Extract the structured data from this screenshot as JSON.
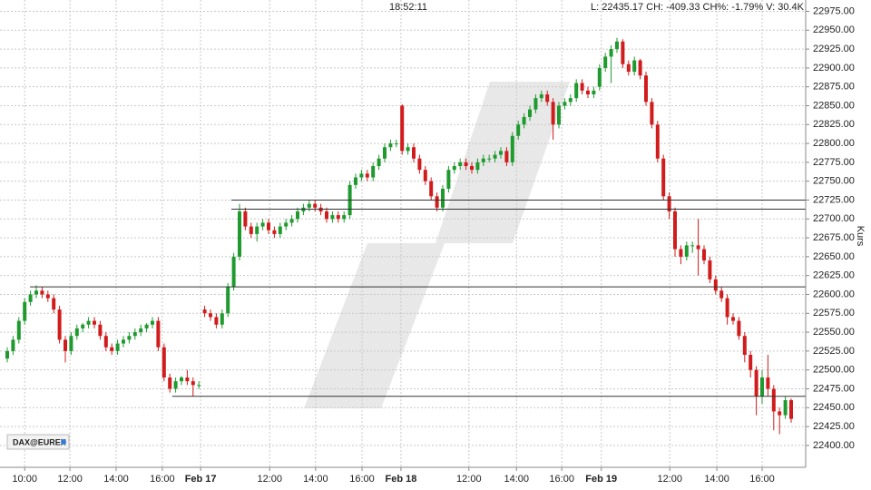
{
  "chart_data": {
    "type": "candlestick",
    "header_time": "18:52:11",
    "header_quote": "L: 22435.17 CH: -409.33 CH%: -1.79% V: 30.4K",
    "badge": "DAX@EUREX",
    "y_label": "Kurs",
    "up_color": "#1f9a2f",
    "down_color": "#d01c1c",
    "grid": true,
    "xlim": [
      -1.25,
      137.5
    ],
    "ylim": [
      22371,
      22990
    ],
    "xticks": [
      {
        "value": 3,
        "label": "10:00"
      },
      {
        "value": 10.8,
        "label": "12:00"
      },
      {
        "value": 18.75,
        "label": "14:00"
      },
      {
        "value": 26.7,
        "label": "16:00"
      },
      {
        "value": 33.3,
        "label": "Feb 17"
      },
      {
        "value": 45.2,
        "label": "12:00"
      },
      {
        "value": 53.1,
        "label": "14:00"
      },
      {
        "value": 61.1,
        "label": "16:00"
      },
      {
        "value": 67.8,
        "label": "Feb 18"
      },
      {
        "value": 79.5,
        "label": "12:00"
      },
      {
        "value": 87.7,
        "label": "14:00"
      },
      {
        "value": 95.5,
        "label": "16:00"
      },
      {
        "value": 102.3,
        "label": "Feb 19"
      },
      {
        "value": 114.1,
        "label": "12:00"
      },
      {
        "value": 122.2,
        "label": "14:00"
      },
      {
        "value": 130,
        "label": "16:00"
      }
    ],
    "yticks": [
      {
        "value": 22400,
        "label": "22400.00"
      },
      {
        "value": 22425,
        "label": "22425.00"
      },
      {
        "value": 22450,
        "label": "22450.00"
      },
      {
        "value": 22475,
        "label": "22475.00"
      },
      {
        "value": 22500,
        "label": "22500.00"
      },
      {
        "value": 22525,
        "label": "22525.00"
      },
      {
        "value": 22550,
        "label": "22550.00"
      },
      {
        "value": 22575,
        "label": "22575.00"
      },
      {
        "value": 22600,
        "label": "22600.00"
      },
      {
        "value": 22625,
        "label": "22625.00"
      },
      {
        "value": 22650,
        "label": "22650.00"
      },
      {
        "value": 22675,
        "label": "22675.00"
      },
      {
        "value": 22700,
        "label": "22700.00"
      },
      {
        "value": 22725,
        "label": "22725.00"
      },
      {
        "value": 22750,
        "label": "22750.00"
      },
      {
        "value": 22775,
        "label": "22775.00"
      },
      {
        "value": 22800,
        "label": "22800.00"
      },
      {
        "value": 22825,
        "label": "22825.00"
      },
      {
        "value": 22850,
        "label": "22850.00"
      },
      {
        "value": 22875,
        "label": "22875.00"
      },
      {
        "value": 22900,
        "label": "22900.00"
      },
      {
        "value": 22925,
        "label": "22925.00"
      },
      {
        "value": 22950,
        "label": "22950.00"
      },
      {
        "value": 22975,
        "label": "22975.00"
      }
    ],
    "hlines": [
      {
        "value": 22725,
        "x_start": 38.6
      },
      {
        "value": 22713,
        "x_start": 38.6
      },
      {
        "value": 22610,
        "x_start": 3.9
      },
      {
        "value": 22465,
        "x_start": 28.4
      }
    ],
    "open": [
      22515,
      22525,
      22540,
      22565,
      22590,
      22600,
      22605,
      22600,
      22595,
      22580,
      22540,
      22525,
      22545,
      22555,
      22560,
      22565,
      22560,
      22545,
      22530,
      22525,
      22535,
      22540,
      22545,
      22550,
      22555,
      22560,
      22565,
      22530,
      22490,
      22475,
      22485,
      22490,
      22485,
      22480,
      22580,
      22575,
      22570,
      22560,
      22575,
      22610,
      22650,
      22710,
      22690,
      22680,
      22690,
      22695,
      22685,
      22680,
      22690,
      22695,
      22700,
      22710,
      22715,
      22720,
      22715,
      22710,
      22700,
      22705,
      22700,
      22705,
      22745,
      22755,
      22760,
      22755,
      22770,
      22780,
      22795,
      22800,
      22850,
      22790,
      22795,
      22780,
      22765,
      22750,
      22730,
      22715,
      22740,
      22765,
      22770,
      22775,
      22770,
      22765,
      22775,
      22780,
      22780,
      22785,
      22790,
      22775,
      22810,
      22825,
      22835,
      22845,
      22860,
      22865,
      22855,
      22825,
      22850,
      22855,
      22860,
      22880,
      22870,
      22865,
      22875,
      22900,
      22915,
      22925,
      22935,
      22905,
      22895,
      22910,
      22890,
      22855,
      22825,
      22780,
      22730,
      22710,
      22660,
      22650,
      22665,
      22665,
      22660,
      22645,
      22620,
      22605,
      22595,
      22570,
      22565,
      22545,
      22520,
      22500,
      22465,
      22490,
      22475,
      22445,
      22440,
      22460
    ],
    "high": [
      22530,
      22545,
      22570,
      22595,
      22605,
      22612,
      22610,
      22605,
      22600,
      22585,
      22545,
      22550,
      22560,
      22562,
      22570,
      22570,
      22565,
      22550,
      22535,
      22540,
      22545,
      22550,
      22555,
      22560,
      22562,
      22570,
      22570,
      22535,
      22495,
      22490,
      22492,
      22500,
      22490,
      22485,
      22585,
      22580,
      22575,
      22580,
      22615,
      22655,
      22720,
      22715,
      22695,
      22695,
      22700,
      22700,
      22690,
      22695,
      22700,
      22705,
      22715,
      22720,
      22725,
      22725,
      22720,
      22715,
      22710,
      22710,
      22710,
      22750,
      22760,
      22765,
      22765,
      22775,
      22785,
      22800,
      22805,
      22805,
      22852,
      22800,
      22800,
      22785,
      22770,
      22755,
      22735,
      22745,
      22770,
      22775,
      22780,
      22780,
      22775,
      22780,
      22785,
      22785,
      22790,
      22795,
      22795,
      22815,
      22830,
      22840,
      22850,
      22865,
      22870,
      22870,
      22860,
      22855,
      22860,
      22865,
      22885,
      22885,
      22875,
      22875,
      22905,
      22920,
      22930,
      22940,
      22938,
      22910,
      22915,
      22912,
      22895,
      22860,
      22830,
      22785,
      22735,
      22715,
      22665,
      22670,
      22670,
      22700,
      22665,
      22650,
      22625,
      22610,
      22600,
      22575,
      22570,
      22550,
      22525,
      22505,
      22500,
      22520,
      22480,
      22450,
      22465,
      22462
    ],
    "low": [
      22510,
      22520,
      22535,
      22560,
      22585,
      22595,
      22595,
      22590,
      22575,
      22535,
      22510,
      22520,
      22540,
      22550,
      22555,
      22555,
      22540,
      22525,
      22520,
      22520,
      22530,
      22535,
      22540,
      22545,
      22550,
      22555,
      22525,
      22485,
      22470,
      22470,
      22480,
      22480,
      22465,
      22475,
      22570,
      22565,
      22555,
      22555,
      22570,
      22605,
      22645,
      22685,
      22675,
      22670,
      22685,
      22680,
      22675,
      22675,
      22685,
      22690,
      22695,
      22705,
      22710,
      22710,
      22705,
      22695,
      22695,
      22695,
      22695,
      22700,
      22740,
      22750,
      22750,
      22750,
      22765,
      22775,
      22790,
      22795,
      22785,
      22785,
      22775,
      22760,
      22745,
      22725,
      22710,
      22710,
      22735,
      22760,
      22765,
      22765,
      22760,
      22760,
      22770,
      22775,
      22775,
      22780,
      22770,
      22770,
      22805,
      22820,
      22830,
      22840,
      22855,
      22850,
      22805,
      22820,
      22845,
      22850,
      22855,
      22865,
      22860,
      22860,
      22870,
      22895,
      22880,
      22920,
      22900,
      22890,
      22890,
      22885,
      22850,
      22820,
      22775,
      22725,
      22700,
      22650,
      22640,
      22645,
      22655,
      22625,
      22640,
      22615,
      22600,
      22590,
      22560,
      22560,
      22540,
      22510,
      22490,
      22440,
      22455,
      22465,
      22420,
      22415,
      22435,
      22430
    ],
    "close": [
      22525,
      22540,
      22565,
      22590,
      22600,
      22605,
      22600,
      22595,
      22580,
      22540,
      22525,
      22545,
      22555,
      22560,
      22565,
      22560,
      22545,
      22530,
      22525,
      22535,
      22540,
      22545,
      22550,
      22555,
      22560,
      22565,
      22530,
      22490,
      22475,
      22485,
      22490,
      22485,
      22480,
      22480,
      22575,
      22570,
      22560,
      22575,
      22610,
      22650,
      22710,
      22690,
      22680,
      22690,
      22695,
      22685,
      22680,
      22690,
      22695,
      22700,
      22710,
      22715,
      22720,
      22715,
      22710,
      22700,
      22705,
      22700,
      22705,
      22745,
      22755,
      22760,
      22755,
      22770,
      22780,
      22795,
      22800,
      22800,
      22790,
      22795,
      22780,
      22765,
      22750,
      22730,
      22715,
      22740,
      22765,
      22770,
      22775,
      22770,
      22765,
      22775,
      22780,
      22780,
      22785,
      22790,
      22775,
      22810,
      22825,
      22835,
      22845,
      22860,
      22865,
      22855,
      22825,
      22850,
      22855,
      22860,
      22880,
      22870,
      22865,
      22870,
      22900,
      22915,
      22925,
      22935,
      22905,
      22895,
      22910,
      22890,
      22855,
      22825,
      22780,
      22730,
      22710,
      22660,
      22650,
      22665,
      22665,
      22660,
      22645,
      22620,
      22605,
      22595,
      22570,
      22565,
      22545,
      22520,
      22500,
      22465,
      22490,
      22475,
      22445,
      22440,
      22460,
      22435.17
    ]
  }
}
